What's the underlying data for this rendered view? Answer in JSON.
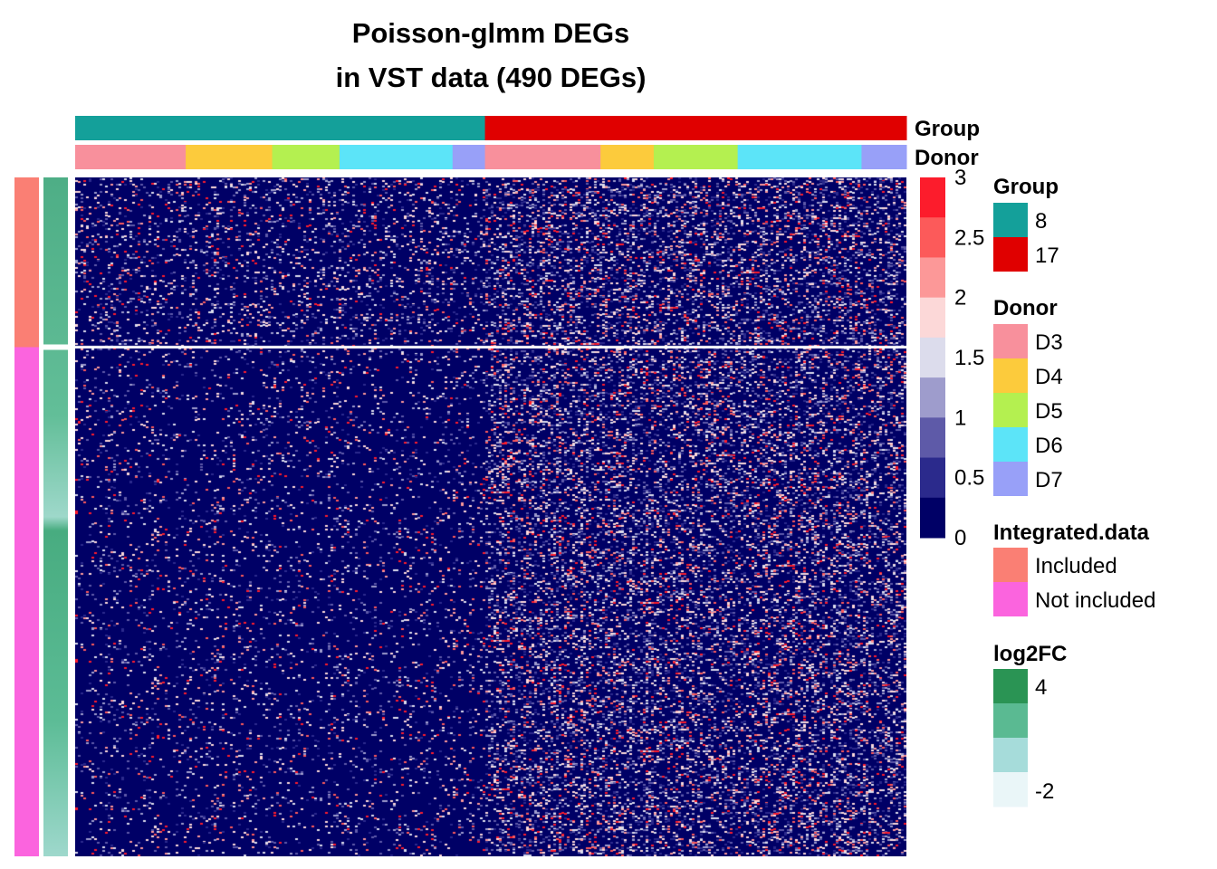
{
  "title": {
    "line1": "Poisson-glmm DEGs",
    "line2": "in VST data (490 DEGs)"
  },
  "chart_data": {
    "type": "heatmap",
    "title": "Poisson-glmm DEGs in VST data (490 DEGs)",
    "n_genes": 490,
    "column_annotations": [
      {
        "name": "Group",
        "segments": [
          {
            "value": "8",
            "fraction": 0.493
          },
          {
            "value": "17",
            "fraction": 0.507
          }
        ]
      },
      {
        "name": "Donor",
        "segments": [
          {
            "value": "D3",
            "fraction": 0.133
          },
          {
            "value": "D4",
            "fraction": 0.104
          },
          {
            "value": "D5",
            "fraction": 0.081
          },
          {
            "value": "D6",
            "fraction": 0.136
          },
          {
            "value": "D7",
            "fraction": 0.039
          },
          {
            "value": "D3",
            "fraction": 0.139
          },
          {
            "value": "D4",
            "fraction": 0.064
          },
          {
            "value": "D5",
            "fraction": 0.101
          },
          {
            "value": "D6",
            "fraction": 0.149
          },
          {
            "value": "D7",
            "fraction": 0.054
          }
        ]
      }
    ],
    "row_annotations": [
      {
        "name": "Integrated.data",
        "segments": [
          {
            "value": "Included",
            "fraction": 0.25
          },
          {
            "value": "Not included",
            "fraction": 0.75
          }
        ]
      },
      {
        "name": "log2FC",
        "type": "continuous",
        "description_range": [
          -2,
          4
        ]
      }
    ],
    "color_scale": {
      "breaks": [
        0,
        0.5,
        1,
        1.5,
        2,
        2.5,
        3
      ],
      "colors": [
        "#000066",
        "#2b2a8c",
        "#5e5aa8",
        "#9e9ccc",
        "#dcdcec",
        "#fcd8d8",
        "#fc9898",
        "#fc5a5a",
        "#fc1c2c"
      ]
    },
    "row_blocks": [
      {
        "label": "Included",
        "pattern": "low in group 8 with sparse high values; higher in group 17"
      },
      {
        "label": "Not included",
        "pattern": "low in group 8; higher in group 17"
      }
    ]
  },
  "annotation_labels": {
    "group": "Group",
    "donor": "Donor"
  },
  "legend": {
    "scale_ticks": [
      "3",
      "2.5",
      "2",
      "1.5",
      "1",
      "0.5",
      "0"
    ],
    "group": {
      "title": "Group",
      "items": [
        {
          "label": "8",
          "color": "#14A09A"
        },
        {
          "label": "17",
          "color": "#E00000"
        }
      ]
    },
    "donor": {
      "title": "Donor",
      "items": [
        {
          "label": "D3",
          "color": "#F8909C"
        },
        {
          "label": "D4",
          "color": "#FCCB3C"
        },
        {
          "label": "D5",
          "color": "#B4F050"
        },
        {
          "label": "D6",
          "color": "#5CE4F8"
        },
        {
          "label": "D7",
          "color": "#98A0F8"
        }
      ]
    },
    "integrated": {
      "title": "Integrated.data",
      "items": [
        {
          "label": "Included",
          "color": "#FA7F74"
        },
        {
          "label": "Not included",
          "color": "#FB64DE"
        }
      ]
    },
    "log2fc": {
      "title": "log2FC",
      "top_label": "4",
      "bottom_label": "-2",
      "colors": [
        "#2A9454",
        "#5ABA92",
        "#A6DCDA",
        "#EAF6F8"
      ]
    }
  }
}
